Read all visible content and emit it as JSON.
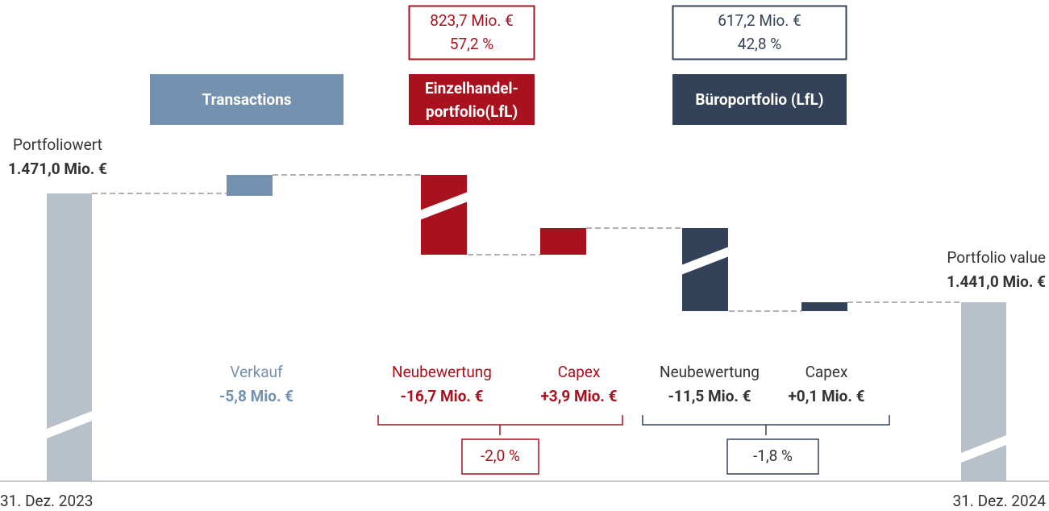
{
  "chart_data": {
    "type": "waterfall",
    "start": {
      "label": "Portfoliowert",
      "value": 1471.0,
      "value_label": "1.471,0 Mio. €",
      "date": "31. Dez. 2023",
      "color": "#b8c0c9"
    },
    "end": {
      "label": "Portfolio value",
      "value": 1441.0,
      "value_label": "1.441,0 Mio. €",
      "date": "31. Dez. 2024",
      "color": "#b8c0c9"
    },
    "groups": [
      {
        "name": "Transactions",
        "color": "#7491b0",
        "steps": [
          {
            "name": "Verkauf",
            "value": -5.8,
            "value_label": "-5,8 Mio. €"
          }
        ]
      },
      {
        "name": "Einzelhandel-\nportfolio(LfL)",
        "color": "#a8111d",
        "total": "823,7 Mio. €",
        "share": "57,2 %",
        "change": "-2,0 %",
        "steps": [
          {
            "name": "Neubewertung",
            "value": -16.7,
            "value_label": "-16,7 Mio. €"
          },
          {
            "name": "Capex",
            "value": 3.9,
            "value_label": "+3,9 Mio. €"
          }
        ]
      },
      {
        "name": "Büroportfolio (LfL)",
        "color": "#334259",
        "total": "617,2 Mio. €",
        "share": "42,8 %",
        "change": "-1,8 %",
        "steps": [
          {
            "name": "Neubewertung",
            "value": -11.5,
            "value_label": "-11,5 Mio. €"
          },
          {
            "name": "Capex",
            "value": 0.1,
            "value_label": "+0,1 Mio. €"
          }
        ]
      }
    ]
  }
}
